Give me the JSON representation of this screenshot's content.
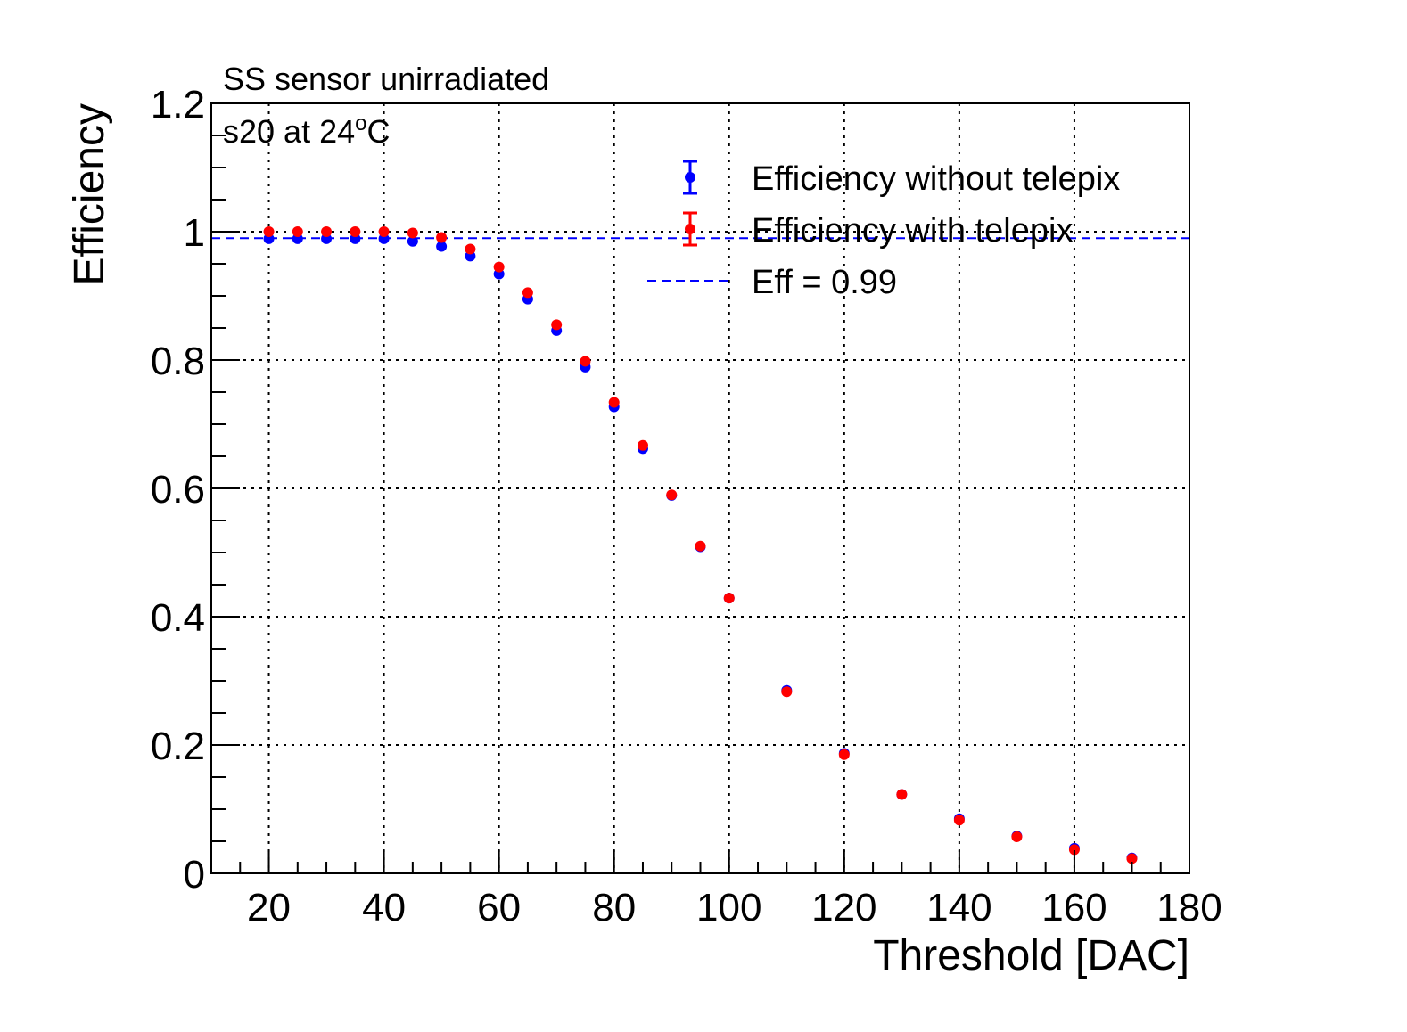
{
  "chart_data": {
    "type": "scatter",
    "xlabel": "Threshold [DAC]",
    "ylabel": "Efficiency",
    "xlim": [
      10,
      180
    ],
    "ylim": [
      0,
      1.2
    ],
    "xticks": [
      "20",
      "40",
      "60",
      "80",
      "100",
      "120",
      "140",
      "160",
      "180"
    ],
    "yticks": [
      "0",
      "0.2",
      "0.4",
      "0.6",
      "0.8",
      "1",
      "1.2"
    ],
    "grid": true,
    "annotations": {
      "line1": "SS sensor unirradiated",
      "line2_prefix": "s20 at 24",
      "line2_sup": "o",
      "line2_suffix": "C"
    },
    "legend_position": "top-right",
    "reference_line": {
      "name": "Eff = 0.99",
      "y": 0.99,
      "color": "#0000ff"
    },
    "x": [
      20,
      25,
      30,
      35,
      40,
      45,
      50,
      55,
      60,
      65,
      70,
      75,
      80,
      85,
      90,
      95,
      100,
      110,
      120,
      130,
      140,
      150,
      160,
      170
    ],
    "series": [
      {
        "name": "Efficiency without telepix",
        "color": "#0000ff",
        "values": [
          0.989,
          0.989,
          0.989,
          0.989,
          0.989,
          0.985,
          0.977,
          0.962,
          0.934,
          0.895,
          0.846,
          0.789,
          0.727,
          0.662,
          0.589,
          0.509,
          0.429,
          0.285,
          0.187,
          0.123,
          0.085,
          0.058,
          0.039,
          0.024
        ]
      },
      {
        "name": "Efficiency with telepix",
        "color": "#ff0000",
        "values": [
          1.0,
          1.0,
          1.0,
          1.0,
          1.0,
          0.998,
          0.991,
          0.973,
          0.945,
          0.905,
          0.855,
          0.798,
          0.734,
          0.667,
          0.59,
          0.51,
          0.429,
          0.283,
          0.185,
          0.123,
          0.083,
          0.057,
          0.037,
          0.023
        ]
      }
    ]
  }
}
